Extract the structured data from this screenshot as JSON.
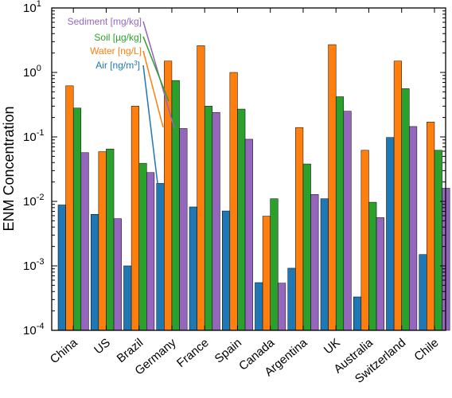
{
  "chart_data": {
    "type": "bar",
    "yscale": "log",
    "ylim": [
      0.0001,
      10
    ],
    "ylabel": "ENM Concentration",
    "xlabel": "",
    "title": "",
    "grid": false,
    "legend_position": "top-left, inside plot with leader lines",
    "categories": [
      "China",
      "US",
      "Brazil",
      "Germany",
      "France",
      "Spain",
      "Canada",
      "Argentina",
      "UK",
      "Australia",
      "Switzerland",
      "Chile"
    ],
    "series": [
      {
        "name": "Air [ng/m³]",
        "color": "#1f77b4",
        "values": [
          0.0088,
          0.0063,
          0.001,
          0.019,
          0.0082,
          0.0071,
          0.00055,
          0.00092,
          0.011,
          0.00033,
          0.098,
          0.0015
        ]
      },
      {
        "name": "Water [ng/L]",
        "color": "#ff7f0e",
        "values": [
          0.62,
          0.059,
          0.3,
          1.5,
          2.6,
          1.0,
          0.0059,
          0.14,
          2.7,
          0.062,
          1.5,
          0.17
        ]
      },
      {
        "name": "Soil [µg/kg]",
        "color": "#2ca02c",
        "values": [
          0.28,
          0.065,
          0.039,
          0.75,
          0.3,
          0.27,
          0.011,
          0.038,
          0.42,
          0.0097,
          0.56,
          0.062
        ]
      },
      {
        "name": "Sediment [mg/kg]",
        "color": "#9467bd",
        "values": [
          0.057,
          0.0054,
          0.028,
          0.135,
          0.24,
          0.092,
          0.00054,
          0.0128,
          0.25,
          0.0056,
          0.145,
          0.016
        ]
      }
    ],
    "yticks": [
      {
        "base": "10",
        "exp": "1"
      },
      {
        "base": "10",
        "exp": "0"
      },
      {
        "base": "10",
        "exp": "-1"
      },
      {
        "base": "10",
        "exp": "-2"
      },
      {
        "base": "10",
        "exp": "-3"
      },
      {
        "base": "10",
        "exp": "-4"
      }
    ],
    "legend_labels": {
      "sediment": "Sediment [mg/kg]",
      "soil": "Soil [µg/kg]",
      "water": "Water [ng/L]",
      "air_prefix": "Air [ng/m",
      "air_sup": "3",
      "air_suffix": "]"
    }
  }
}
